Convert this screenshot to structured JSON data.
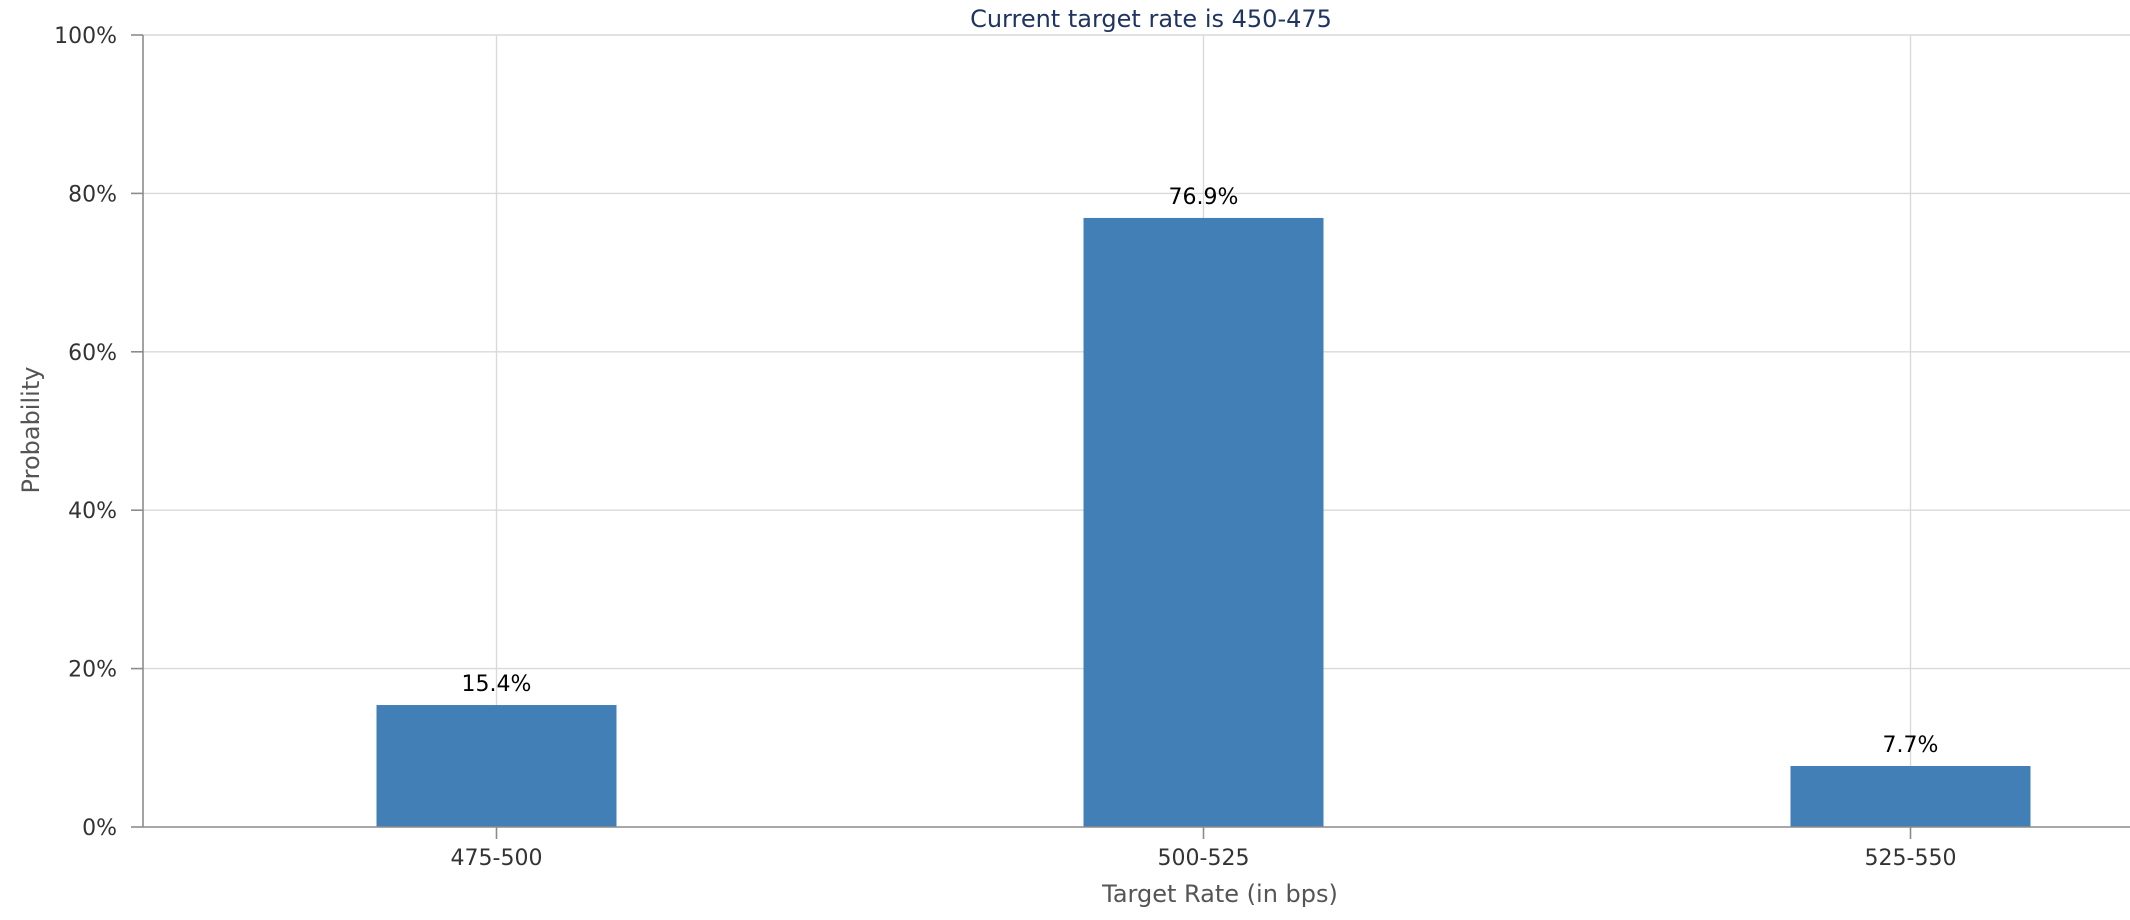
{
  "chart_data": {
    "type": "bar",
    "title": "Current target rate is 450-475",
    "xlabel": "Target Rate (in bps)",
    "ylabel": "Probability",
    "categories": [
      "475-500",
      "500-525",
      "525-550"
    ],
    "values": [
      15.4,
      76.9,
      7.7
    ],
    "data_labels": [
      "15.4%",
      "76.9%",
      "7.7%"
    ],
    "ylim": [
      0,
      100
    ],
    "yticks": [
      0,
      20,
      40,
      60,
      80,
      100
    ],
    "ytick_labels": [
      "0%",
      "20%",
      "40%",
      "60%",
      "80%",
      "100%"
    ],
    "grid": true,
    "legend": "none",
    "bar_color": "#427fb6"
  }
}
